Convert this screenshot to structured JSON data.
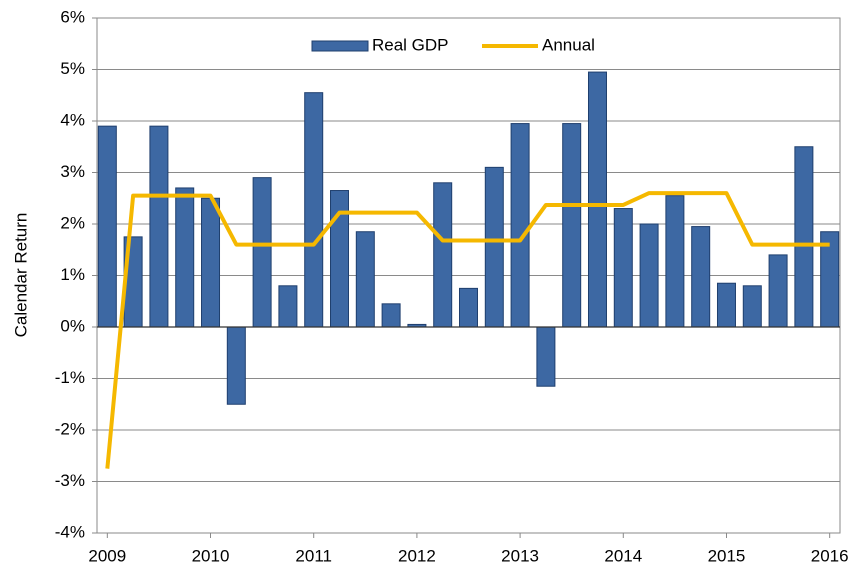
{
  "chart_data": {
    "type": "bar_line",
    "y_label": "Calendar Return",
    "x": [
      2009,
      2009.25,
      2009.5,
      2009.75,
      2010,
      2010.25,
      2010.5,
      2010.75,
      2011,
      2011.25,
      2011.5,
      2011.75,
      2012,
      2012.25,
      2012.5,
      2012.75,
      2013,
      2013.25,
      2013.5,
      2013.75,
      2014,
      2014.25,
      2014.5,
      2014.75,
      2015,
      2015.25,
      2015.5,
      2015.75,
      2016
    ],
    "series": [
      {
        "name": "Real GDP",
        "type": "bar",
        "color": "#3d68a3",
        "values": [
          3.9,
          1.75,
          3.9,
          2.7,
          2.5,
          -1.5,
          2.9,
          0.8,
          4.55,
          2.65,
          1.85,
          0.45,
          0.05,
          2.8,
          0.75,
          3.1,
          3.95,
          -1.15,
          3.95,
          4.95,
          2.3,
          2.0,
          2.55,
          1.95,
          0.85,
          0.8,
          1.4,
          3.5,
          1.85
        ]
      },
      {
        "name": "Annual",
        "type": "line",
        "color": "#f5b800",
        "values": [
          -2.75,
          2.55,
          2.55,
          2.55,
          2.55,
          1.6,
          1.6,
          1.6,
          1.6,
          2.22,
          2.22,
          2.22,
          2.22,
          1.68,
          1.68,
          1.68,
          1.68,
          2.37,
          2.37,
          2.37,
          2.37,
          2.6,
          2.6,
          2.6,
          2.6,
          1.6,
          1.6,
          1.6,
          1.6
        ]
      }
    ],
    "xlim": [
      2008.9,
      2016.1
    ],
    "xticks": [
      2009,
      2010,
      2011,
      2012,
      2013,
      2014,
      2015,
      2016
    ],
    "ylim": [
      -4,
      6
    ],
    "yticks": [
      {
        "value": -4,
        "label": "-4%"
      },
      {
        "value": -3,
        "label": "-3%"
      },
      {
        "value": -2,
        "label": "-2%"
      },
      {
        "value": -1,
        "label": "-1%"
      },
      {
        "value": 0,
        "label": "0%"
      },
      {
        "value": 1,
        "label": "1%"
      },
      {
        "value": 2,
        "label": "2%"
      },
      {
        "value": 3,
        "label": "3%"
      },
      {
        "value": 4,
        "label": "4%"
      },
      {
        "value": 5,
        "label": "5%"
      },
      {
        "value": 6,
        "label": "6%"
      }
    ],
    "grid": true,
    "legend": "top"
  }
}
